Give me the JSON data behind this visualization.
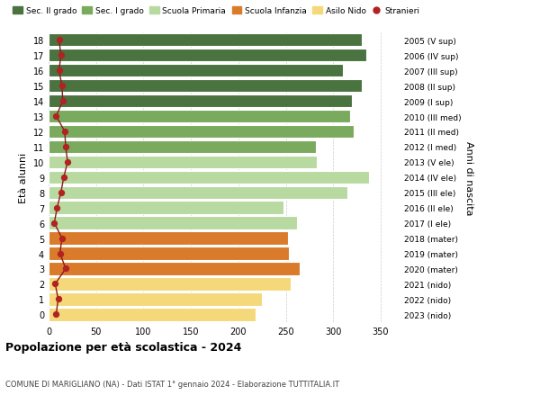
{
  "ages": [
    0,
    1,
    2,
    3,
    4,
    5,
    6,
    7,
    8,
    9,
    10,
    11,
    12,
    13,
    14,
    15,
    16,
    17,
    18
  ],
  "bar_values": [
    218,
    225,
    255,
    265,
    253,
    252,
    262,
    248,
    315,
    338,
    283,
    282,
    322,
    318,
    320,
    330,
    310,
    335,
    330
  ],
  "stranieri": [
    8,
    10,
    7,
    18,
    12,
    14,
    6,
    9,
    13,
    16,
    20,
    18,
    17,
    8,
    15,
    14,
    11,
    13,
    11
  ],
  "right_labels": [
    "2023 (nido)",
    "2022 (nido)",
    "2021 (nido)",
    "2020 (mater)",
    "2019 (mater)",
    "2018 (mater)",
    "2017 (I ele)",
    "2016 (II ele)",
    "2015 (III ele)",
    "2014 (IV ele)",
    "2013 (V ele)",
    "2012 (I med)",
    "2011 (II med)",
    "2010 (III med)",
    "2009 (I sup)",
    "2008 (II sup)",
    "2007 (III sup)",
    "2006 (IV sup)",
    "2005 (V sup)"
  ],
  "age_colors": [
    "#f5d87a",
    "#f5d87a",
    "#f5d87a",
    "#d97b2a",
    "#d97b2a",
    "#d97b2a",
    "#b8d9a0",
    "#b8d9a0",
    "#b8d9a0",
    "#b8d9a0",
    "#b8d9a0",
    "#7aaa5e",
    "#7aaa5e",
    "#7aaa5e",
    "#4a7340",
    "#4a7340",
    "#4a7340",
    "#4a7340",
    "#4a7340"
  ],
  "stranieri_color": "#b22222",
  "stranieri_line_color": "#8b1a1a",
  "title": "Popolazione per età scolastica - 2024",
  "subtitle": "COMUNE DI MARIGLIANO (NA) - Dati ISTAT 1° gennaio 2024 - Elaborazione TUTTITALIA.IT",
  "ylabel": "Età alunni",
  "right_ylabel": "Anni di nascita",
  "xlabel_ticks": [
    0,
    50,
    100,
    150,
    200,
    250,
    300,
    350
  ],
  "xlim": [
    0,
    370
  ],
  "legend_labels": [
    "Sec. II grado",
    "Sec. I grado",
    "Scuola Primaria",
    "Scuola Infanzia",
    "Asilo Nido",
    "Stranieri"
  ],
  "legend_colors": [
    "#4a7340",
    "#7aaa5e",
    "#b8d9a0",
    "#d97b2a",
    "#f5d87a",
    "#b22222"
  ],
  "bg_color": "#ffffff",
  "grid_color": "#cccccc"
}
